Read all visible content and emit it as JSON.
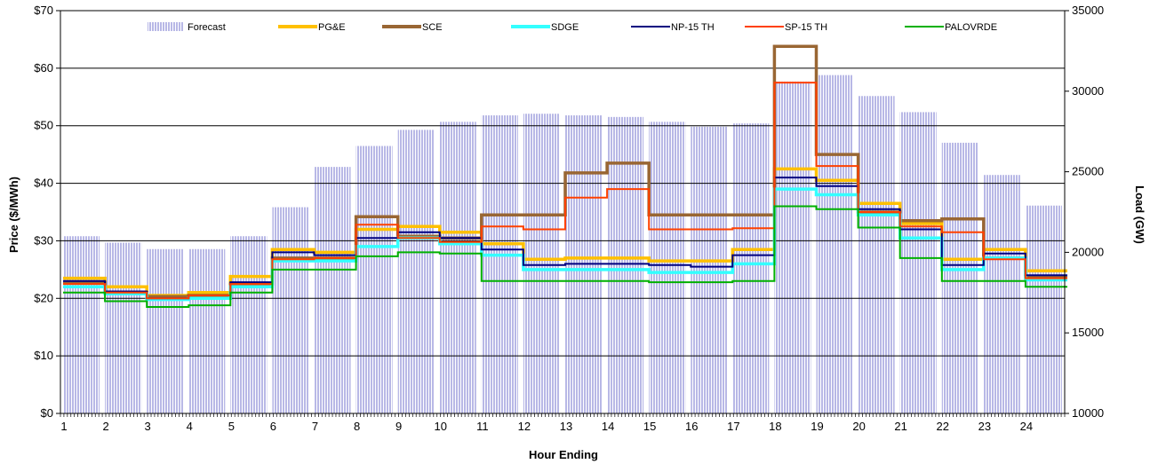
{
  "chart_data": {
    "type": "line",
    "title": "",
    "xlabel": "Hour Ending",
    "ylabel": "Price ($/MWh)",
    "y2label": "Load (GW)",
    "ylim": [
      0,
      70
    ],
    "y2lim": [
      10000,
      35000
    ],
    "yticks": [
      "$0",
      "$10",
      "$20",
      "$30",
      "$40",
      "$50",
      "$60",
      "$70"
    ],
    "y2ticks": [
      "10000",
      "15000",
      "20000",
      "25000",
      "30000",
      "35000"
    ],
    "xticks": [
      "1",
      "2",
      "3",
      "4",
      "5",
      "6",
      "7",
      "8",
      "9",
      "10",
      "11",
      "12",
      "13",
      "14",
      "15",
      "16",
      "17",
      "18",
      "19",
      "20",
      "21",
      "22",
      "23",
      "24"
    ],
    "grid": "horizontal",
    "legend": "top",
    "bars": {
      "name": "Forecast",
      "color": "#b8b8e6",
      "values": [
        21000,
        20600,
        20200,
        20200,
        21000,
        22800,
        25300,
        26600,
        27600,
        28100,
        28500,
        28600,
        28500,
        28400,
        28100,
        27800,
        28000,
        30600,
        31000,
        29700,
        28700,
        26800,
        24800,
        22900
      ]
    },
    "series": [
      {
        "name": "PG&E",
        "color": "#ffc000",
        "values": [
          23.5,
          22.0,
          20.5,
          21.0,
          23.8,
          28.5,
          28.0,
          32.0,
          32.5,
          31.5,
          29.5,
          26.8,
          27.0,
          27.0,
          26.5,
          26.5,
          28.5,
          42.5,
          40.5,
          36.5,
          33.0,
          26.8,
          28.5,
          24.8
        ]
      },
      {
        "name": "SCE",
        "color": "#996633",
        "values": [
          22.8,
          21.0,
          20.3,
          20.5,
          22.5,
          27.0,
          27.0,
          34.2,
          30.8,
          30.5,
          34.5,
          34.5,
          41.8,
          43.5,
          34.5,
          34.5,
          34.5,
          63.8,
          45.0,
          35.0,
          33.5,
          33.8,
          27.0,
          23.8
        ]
      },
      {
        "name": "SDGE",
        "color": "#33ffff",
        "values": [
          22.0,
          20.8,
          19.8,
          20.0,
          22.0,
          26.5,
          26.5,
          29.0,
          30.5,
          29.5,
          27.5,
          25.0,
          25.0,
          25.0,
          24.5,
          24.5,
          26.0,
          39.0,
          38.0,
          34.5,
          30.5,
          25.0,
          27.0,
          23.2
        ]
      },
      {
        "name": "NP-15 TH",
        "color": "#000080",
        "values": [
          23.0,
          21.2,
          20.0,
          20.5,
          22.8,
          28.0,
          27.5,
          30.5,
          31.5,
          30.5,
          28.5,
          25.8,
          26.0,
          26.0,
          25.8,
          25.5,
          27.5,
          41.0,
          39.5,
          35.5,
          32.0,
          25.8,
          27.8,
          24.0
        ]
      },
      {
        "name": "SP-15 TH",
        "color": "#ff4000",
        "values": [
          22.5,
          21.0,
          20.0,
          20.5,
          22.5,
          26.8,
          27.0,
          32.8,
          30.5,
          29.8,
          32.5,
          32.0,
          37.5,
          39.0,
          32.0,
          32.0,
          32.2,
          57.5,
          43.0,
          35.0,
          32.5,
          31.5,
          26.8,
          23.5
        ]
      },
      {
        "name": "PALOVRDE",
        "color": "#00b000",
        "values": [
          21.0,
          19.5,
          18.5,
          18.8,
          21.0,
          25.0,
          25.0,
          27.3,
          28.0,
          27.8,
          23.0,
          23.0,
          23.0,
          23.0,
          22.8,
          22.8,
          23.0,
          36.0,
          35.5,
          32.3,
          27.0,
          23.0,
          23.0,
          22.0
        ]
      }
    ]
  }
}
